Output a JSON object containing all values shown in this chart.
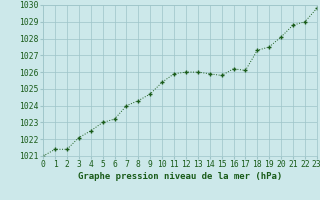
{
  "x": [
    0,
    1,
    2,
    3,
    4,
    5,
    6,
    7,
    8,
    9,
    10,
    11,
    12,
    13,
    14,
    15,
    16,
    17,
    18,
    19,
    20,
    21,
    22,
    23
  ],
  "y": [
    1021.0,
    1021.4,
    1021.4,
    1022.1,
    1022.5,
    1023.0,
    1023.2,
    1024.0,
    1024.3,
    1024.7,
    1025.4,
    1025.9,
    1026.0,
    1026.0,
    1025.9,
    1025.8,
    1026.2,
    1026.1,
    1027.3,
    1027.5,
    1028.1,
    1028.8,
    1029.0,
    1029.8
  ],
  "xlabel": "Graphe pression niveau de la mer (hPa)",
  "ylim": [
    1021,
    1030
  ],
  "xlim": [
    0,
    23
  ],
  "yticks": [
    1021,
    1022,
    1023,
    1024,
    1025,
    1026,
    1027,
    1028,
    1029,
    1030
  ],
  "xticks": [
    0,
    1,
    2,
    3,
    4,
    5,
    6,
    7,
    8,
    9,
    10,
    11,
    12,
    13,
    14,
    15,
    16,
    17,
    18,
    19,
    20,
    21,
    22,
    23
  ],
  "line_color": "#1a5c1a",
  "marker": "+",
  "bg_color": "#cce8ea",
  "grid_color": "#9ec4c8",
  "text_color": "#1a5c1a",
  "xlabel_fontsize": 6.5,
  "tick_fontsize": 5.8
}
